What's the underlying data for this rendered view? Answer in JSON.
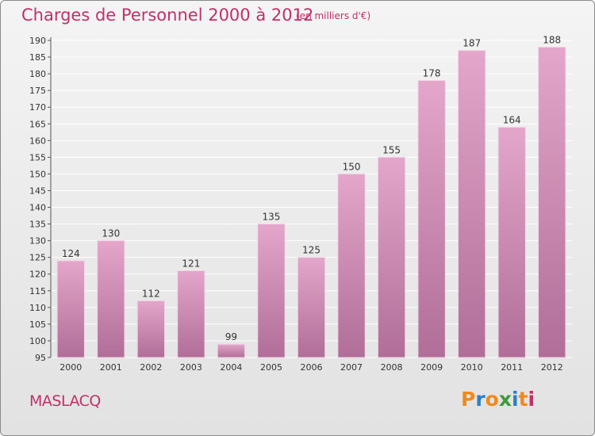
{
  "header": {
    "title": "Charges de Personnel 2000 à 2012",
    "subtitle": "(en milliers d'€)"
  },
  "footer": {
    "commune": "MASLACQ",
    "logo": "Proxiti"
  },
  "colors": {
    "accent": "#c0306a",
    "bar_top": "#e4a6ca",
    "bar_bottom": "#b06e98",
    "logo_letters": [
      "#f08a1c",
      "#2b7fc7",
      "#f08a1c",
      "#3f9a3a",
      "#2b7fc7",
      "#f08a1c",
      "#c0306a"
    ]
  },
  "chart_data": {
    "type": "bar",
    "title": "Charges de Personnel 2000 à 2012",
    "subtitle": "(en milliers d'€)",
    "categories": [
      "2000",
      "2001",
      "2002",
      "2003",
      "2004",
      "2005",
      "2006",
      "2007",
      "2008",
      "2009",
      "2010",
      "2011",
      "2012"
    ],
    "values": [
      124,
      130,
      112,
      121,
      99,
      135,
      125,
      150,
      155,
      178,
      187,
      164,
      188
    ],
    "yticks": [
      95,
      100,
      105,
      110,
      115,
      120,
      125,
      130,
      135,
      140,
      145,
      150,
      155,
      160,
      165,
      170,
      175,
      180,
      185,
      190
    ],
    "ylim": [
      95,
      190
    ],
    "grid": true,
    "xlabel": "",
    "ylabel": ""
  }
}
